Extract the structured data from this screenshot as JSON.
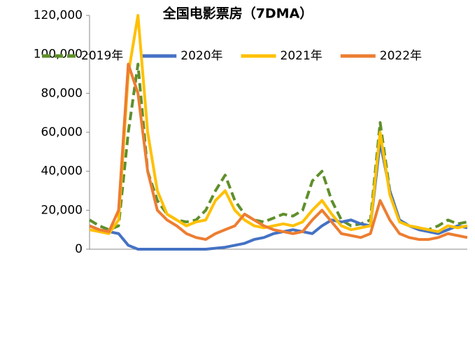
{
  "chart_data": {
    "type": "line",
    "title": "全国电影票房（7DMA）",
    "categories": [
      null,
      null,
      null,
      null,
      null,
      null,
      null,
      null,
      null,
      null,
      null,
      null,
      null,
      null,
      null,
      null,
      null,
      null,
      null,
      null,
      null,
      null,
      null,
      null,
      null,
      null,
      null,
      null,
      null,
      null,
      null,
      null,
      null,
      null,
      null,
      null,
      null,
      null,
      null,
      null
    ],
    "series": [
      {
        "name": "2019年",
        "color": "#5f8f2a",
        "line_style": "dashed",
        "values": [
          15000,
          12000,
          10000,
          12000,
          60000,
          95000,
          40000,
          25000,
          18000,
          15000,
          14000,
          15000,
          20000,
          30000,
          38000,
          25000,
          18000,
          15000,
          14000,
          16000,
          18000,
          17000,
          20000,
          35000,
          40000,
          25000,
          15000,
          12000,
          13000,
          15000,
          65000,
          30000,
          15000,
          12000,
          11000,
          10000,
          12000,
          15000,
          13000,
          14000
        ]
      },
      {
        "name": "2020年",
        "color": "#4472c4",
        "line_style": "solid",
        "values": [
          12000,
          10000,
          9000,
          8000,
          2000,
          0,
          0,
          0,
          0,
          0,
          0,
          0,
          0,
          500,
          1000,
          2000,
          3000,
          5000,
          6000,
          8000,
          9000,
          10000,
          9000,
          8000,
          12000,
          15000,
          14000,
          15000,
          13000,
          12000,
          55000,
          30000,
          15000,
          12000,
          10000,
          9000,
          8000,
          10000,
          12000,
          11000
        ]
      },
      {
        "name": "2021年",
        "color": "#ffc000",
        "line_style": "solid",
        "values": [
          10000,
          9000,
          8000,
          15000,
          90000,
          120000,
          60000,
          30000,
          18000,
          15000,
          12000,
          14000,
          15000,
          25000,
          30000,
          20000,
          15000,
          12000,
          11000,
          12000,
          13000,
          12000,
          14000,
          20000,
          25000,
          18000,
          12000,
          10000,
          11000,
          12000,
          60000,
          28000,
          14000,
          12000,
          11000,
          10000,
          9000,
          12000,
          11000,
          12000
        ]
      },
      {
        "name": "2022年",
        "color": "#ed7d31",
        "line_style": "solid",
        "values": [
          12000,
          10000,
          9000,
          20000,
          95000,
          80000,
          40000,
          20000,
          15000,
          12000,
          8000,
          6000,
          5000,
          8000,
          10000,
          12000,
          18000,
          15000,
          12000,
          10000,
          9000,
          8000,
          9000,
          15000,
          20000,
          14000,
          8000,
          7000,
          6000,
          8000,
          25000,
          15000,
          8000,
          6000,
          5000,
          5000,
          6000,
          8000,
          7000,
          6000
        ]
      }
    ],
    "ylim": [
      0,
      120000
    ],
    "yticks": [
      {
        "value": 0,
        "label": "0"
      },
      {
        "value": 20000,
        "label": "20,000"
      },
      {
        "value": 40000,
        "label": "40,000"
      },
      {
        "value": 60000,
        "label": "60,000"
      },
      {
        "value": 80000,
        "label": "80,000"
      },
      {
        "value": 100000,
        "label": "100,000"
      },
      {
        "value": 120000,
        "label": "120,000"
      }
    ],
    "grid": false,
    "legend": "top"
  }
}
